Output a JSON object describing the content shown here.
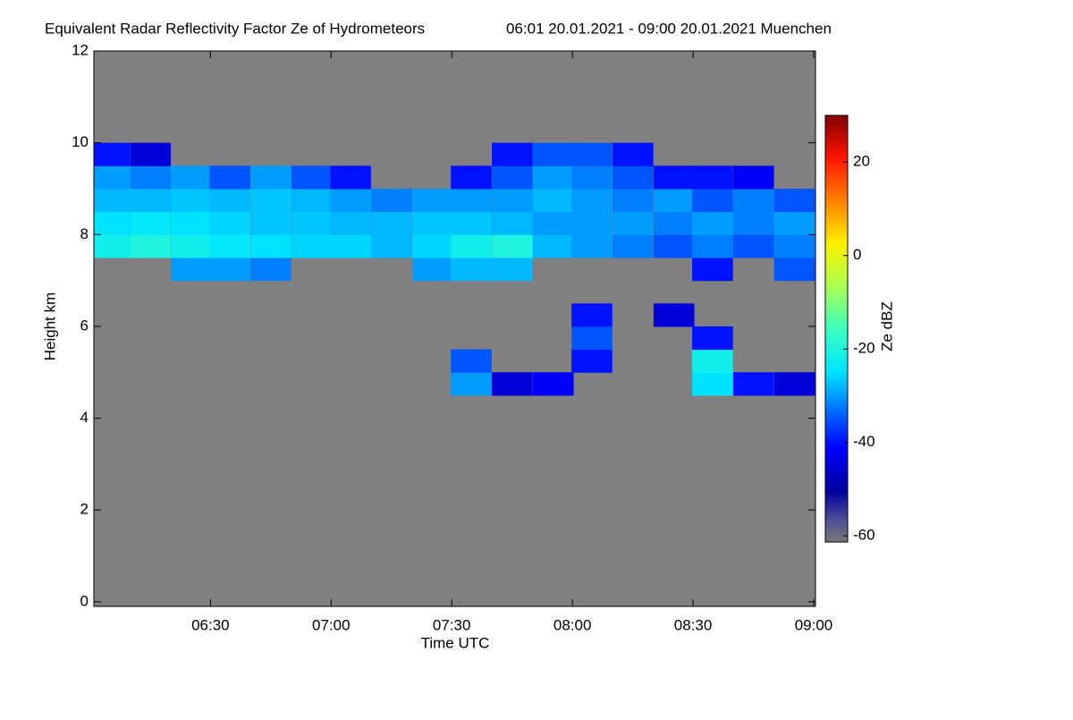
{
  "chart_data": {
    "type": "heatmap",
    "title": "Equivalent Radar Reflectivity Factor Ze of Hydrometeors",
    "subtitle": "06:01 20.01.2021 - 09:00 20.01.2021 Muenchen",
    "xlabel": "Time UTC",
    "ylabel": "Height km",
    "colorbar_label": "Ze dBZ",
    "xlim": [
      6.017,
      9.0
    ],
    "xticks": [
      {
        "value": 6.5,
        "label": "06:30"
      },
      {
        "value": 7.0,
        "label": "07:00"
      },
      {
        "value": 7.5,
        "label": "07:30"
      },
      {
        "value": 8.0,
        "label": "08:00"
      },
      {
        "value": 8.5,
        "label": "08:30"
      },
      {
        "value": 9.0,
        "label": "09:00"
      }
    ],
    "ylim": [
      -0.1,
      12
    ],
    "yticks": [
      0,
      2,
      4,
      6,
      8,
      10,
      12
    ],
    "zlim": [
      -61.3,
      30
    ],
    "zticks": [
      -60,
      -40,
      -20,
      0,
      20
    ],
    "background": "#808080",
    "x": [
      6.08,
      6.25,
      6.42,
      6.58,
      6.75,
      6.92,
      7.08,
      7.25,
      7.42,
      7.58,
      7.75,
      7.92,
      8.08,
      8.25,
      8.42,
      8.58,
      8.75,
      8.92
    ],
    "y": [
      4.75,
      5.25,
      5.75,
      6.25,
      6.75,
      7.25,
      7.75,
      8.25,
      8.75,
      9.25,
      9.75
    ],
    "z": [
      [
        null,
        null,
        null,
        null,
        null,
        null,
        null,
        null,
        null,
        -30,
        -45,
        -42,
        null,
        null,
        null,
        -25,
        -40,
        -45
      ],
      [
        null,
        null,
        null,
        null,
        null,
        null,
        null,
        null,
        null,
        -35,
        null,
        null,
        -40,
        null,
        null,
        -22,
        null,
        null
      ],
      [
        null,
        null,
        null,
        null,
        null,
        null,
        null,
        null,
        null,
        null,
        null,
        null,
        -35,
        null,
        null,
        -40,
        null,
        null
      ],
      [
        null,
        null,
        null,
        null,
        null,
        null,
        null,
        null,
        null,
        null,
        null,
        null,
        -40,
        null,
        -45,
        null,
        null,
        null
      ],
      [
        null,
        null,
        null,
        null,
        null,
        null,
        null,
        null,
        null,
        null,
        null,
        null,
        null,
        null,
        null,
        null,
        null,
        null
      ],
      [
        null,
        null,
        -30,
        -30,
        -32,
        null,
        null,
        null,
        -30,
        -28,
        -28,
        null,
        null,
        null,
        null,
        -40,
        null,
        -35
      ],
      [
        -22,
        -20,
        -22,
        -24,
        -25,
        -26,
        -26,
        -28,
        -26,
        -22,
        -20,
        -28,
        -30,
        -32,
        -35,
        -32,
        -35,
        -32
      ],
      [
        -25,
        -24,
        -25,
        -26,
        -27,
        -27,
        -28,
        -28,
        -27,
        -27,
        -28,
        -30,
        -30,
        -30,
        -32,
        -30,
        -32,
        -30
      ],
      [
        -28,
        -28,
        -27,
        -28,
        -27,
        -28,
        -30,
        -32,
        -30,
        -30,
        -30,
        -28,
        -30,
        -32,
        -30,
        -35,
        -32,
        -35
      ],
      [
        -30,
        -32,
        -30,
        -35,
        -30,
        -35,
        -40,
        null,
        null,
        -40,
        -35,
        -30,
        -32,
        -35,
        -40,
        -40,
        -42,
        null
      ],
      [
        -40,
        -45,
        null,
        null,
        null,
        null,
        null,
        null,
        null,
        null,
        -40,
        -35,
        -35,
        -40,
        null,
        null,
        null,
        null
      ]
    ]
  }
}
